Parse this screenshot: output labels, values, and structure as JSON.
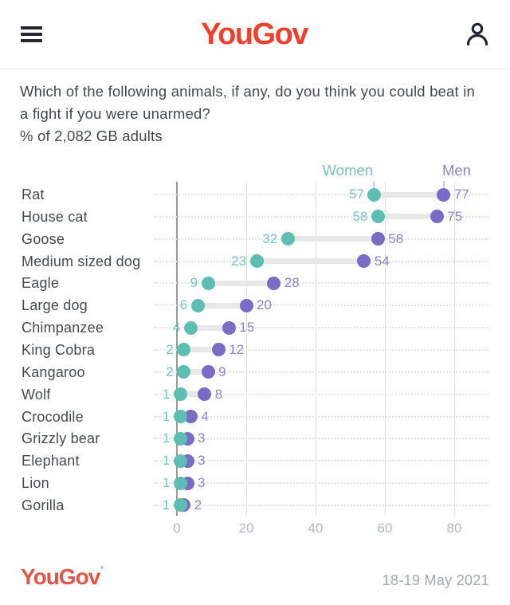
{
  "header": {
    "logo_text": "YouGov",
    "menu_icon": "hamburger-menu",
    "account_icon": "user-profile"
  },
  "question": {
    "lines": [
      "Which of the following animals, if any, do you think you could beat in",
      "a fight if you were unarmed?",
      "% of 2,082 GB adults"
    ]
  },
  "chart_data": {
    "type": "dumbbell",
    "title": "Which of the following animals, if any, do you think you could beat in a fight if you were unarmed?",
    "subtitle": "% of 2,082 GB adults",
    "categories": [
      "Rat",
      "House cat",
      "Goose",
      "Medium sized dog",
      "Eagle",
      "Large dog",
      "Chimpanzee",
      "King Cobra",
      "Kangaroo",
      "Wolf",
      "Crocodile",
      "Grizzly bear",
      "Elephant",
      "Lion",
      "Gorilla"
    ],
    "series": [
      {
        "name": "Women",
        "color": "#5dbeb1",
        "label_color": "#79c5bb",
        "values": [
          57,
          58,
          32,
          23,
          9,
          6,
          4,
          2,
          2,
          1,
          1,
          1,
          1,
          1,
          1
        ]
      },
      {
        "name": "Men",
        "color": "#7a6bc7",
        "label_color": "#8d83d0",
        "values": [
          77,
          75,
          58,
          54,
          28,
          20,
          15,
          12,
          9,
          8,
          4,
          3,
          3,
          3,
          2
        ]
      }
    ],
    "x_ticks": [
      0,
      20,
      40,
      60,
      80
    ],
    "xlim": [
      0,
      90
    ],
    "legend_position": "top",
    "grid": {
      "vertical": "solid",
      "horizontal": "dotted"
    }
  },
  "footer": {
    "logo_text": "YouGov",
    "registered_mark": "’",
    "date": "18-19 May 2021"
  },
  "colors": {
    "brand_red": "#f23f2b",
    "footer_red": "#e2564a",
    "ink": "#23262f",
    "text": "#45494e",
    "axis_text": "#b3b7bb",
    "grid_light": "#dedede",
    "grid_zero": "#999999",
    "row_dotted": "#e3e3e3",
    "connector": "#e8e8e8",
    "legend_tick": "#c9cdd0",
    "divider": "#ededed",
    "date_text": "#a4a8ac"
  }
}
